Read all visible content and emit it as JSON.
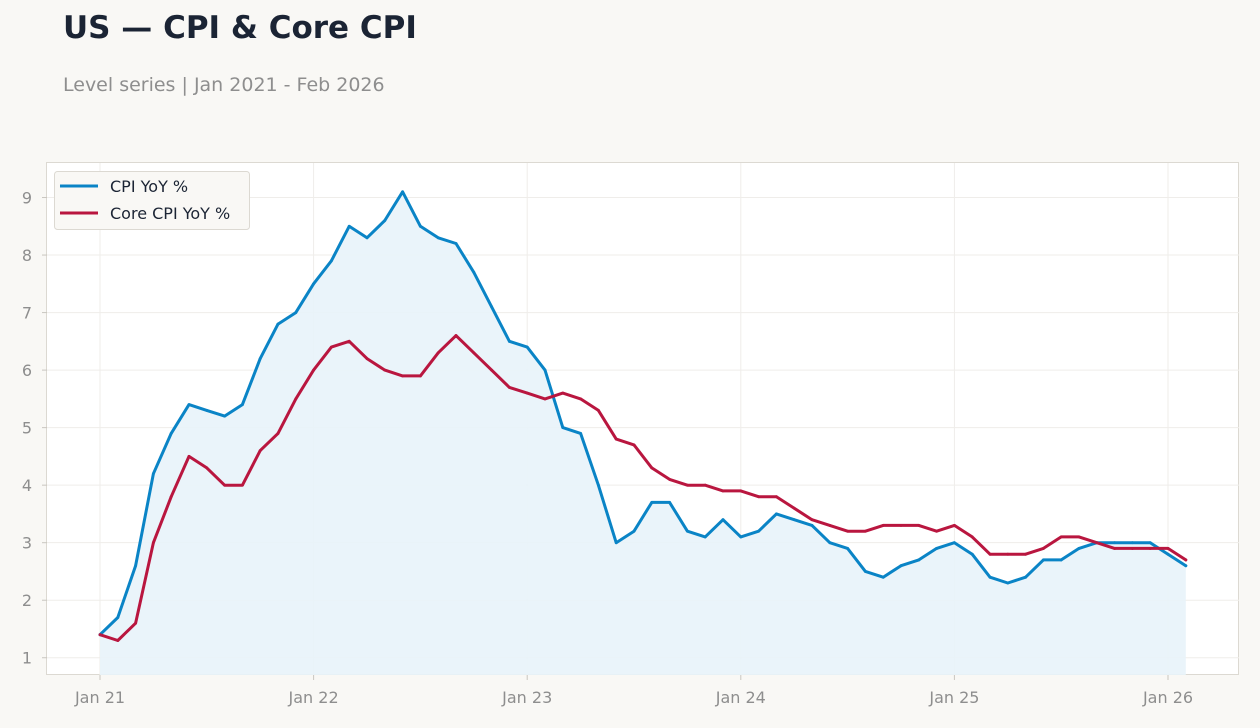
{
  "title": "US — CPI & Core CPI",
  "subtitle": "Level series | Jan 2021 - Feb 2026",
  "colors": {
    "cpi": "#0a84c6",
    "core": "#b9163f",
    "fill": "#e8f3fa",
    "background": "#f9f8f5",
    "plot_background": "#ffffff",
    "text": "#1b2434",
    "muted": "#8e8e8e"
  },
  "chart_data": {
    "type": "line",
    "x_start": "2021-01",
    "x_label_format": "Mon YY",
    "xticks": [
      "Jan 21",
      "Jan 22",
      "Jan 23",
      "Jan 24",
      "Jan 25",
      "Jan 26"
    ],
    "yticks": [
      1,
      2,
      3,
      4,
      5,
      6,
      7,
      8,
      9
    ],
    "ylim": [
      0.7,
      9.6
    ],
    "grid": true,
    "legend": "top-left",
    "series": [
      {
        "name": "CPI YoY %",
        "color": "#0a84c6",
        "filled": true,
        "values": [
          1.4,
          1.7,
          2.6,
          4.2,
          4.9,
          5.4,
          5.3,
          5.2,
          5.4,
          6.2,
          6.8,
          7.0,
          7.5,
          7.9,
          8.5,
          8.3,
          8.6,
          9.1,
          8.5,
          8.3,
          8.2,
          7.7,
          7.1,
          6.5,
          6.4,
          6.0,
          5.0,
          4.9,
          4.0,
          3.0,
          3.2,
          3.7,
          3.7,
          3.2,
          3.1,
          3.4,
          3.1,
          3.2,
          3.5,
          3.4,
          3.3,
          3.0,
          2.9,
          2.5,
          2.4,
          2.6,
          2.7,
          2.9,
          3.0,
          2.8,
          2.4,
          2.3,
          2.4,
          2.7,
          2.7,
          2.9,
          3.0,
          3.0,
          3.0,
          3.0,
          2.8,
          2.6
        ]
      },
      {
        "name": "Core CPI YoY %",
        "color": "#b9163f",
        "filled": false,
        "values": [
          1.4,
          1.3,
          1.6,
          3.0,
          3.8,
          4.5,
          4.3,
          4.0,
          4.0,
          4.6,
          4.9,
          5.5,
          6.0,
          6.4,
          6.5,
          6.2,
          6.0,
          5.9,
          5.9,
          6.3,
          6.6,
          6.3,
          6.0,
          5.7,
          5.6,
          5.5,
          5.6,
          5.5,
          5.3,
          4.8,
          4.7,
          4.3,
          4.1,
          4.0,
          4.0,
          3.9,
          3.9,
          3.8,
          3.8,
          3.6,
          3.4,
          3.3,
          3.2,
          3.2,
          3.3,
          3.3,
          3.3,
          3.2,
          3.3,
          3.1,
          2.8,
          2.8,
          2.8,
          2.9,
          3.1,
          3.1,
          3.0,
          2.9,
          2.9,
          2.9,
          2.9,
          2.7
        ]
      }
    ]
  }
}
